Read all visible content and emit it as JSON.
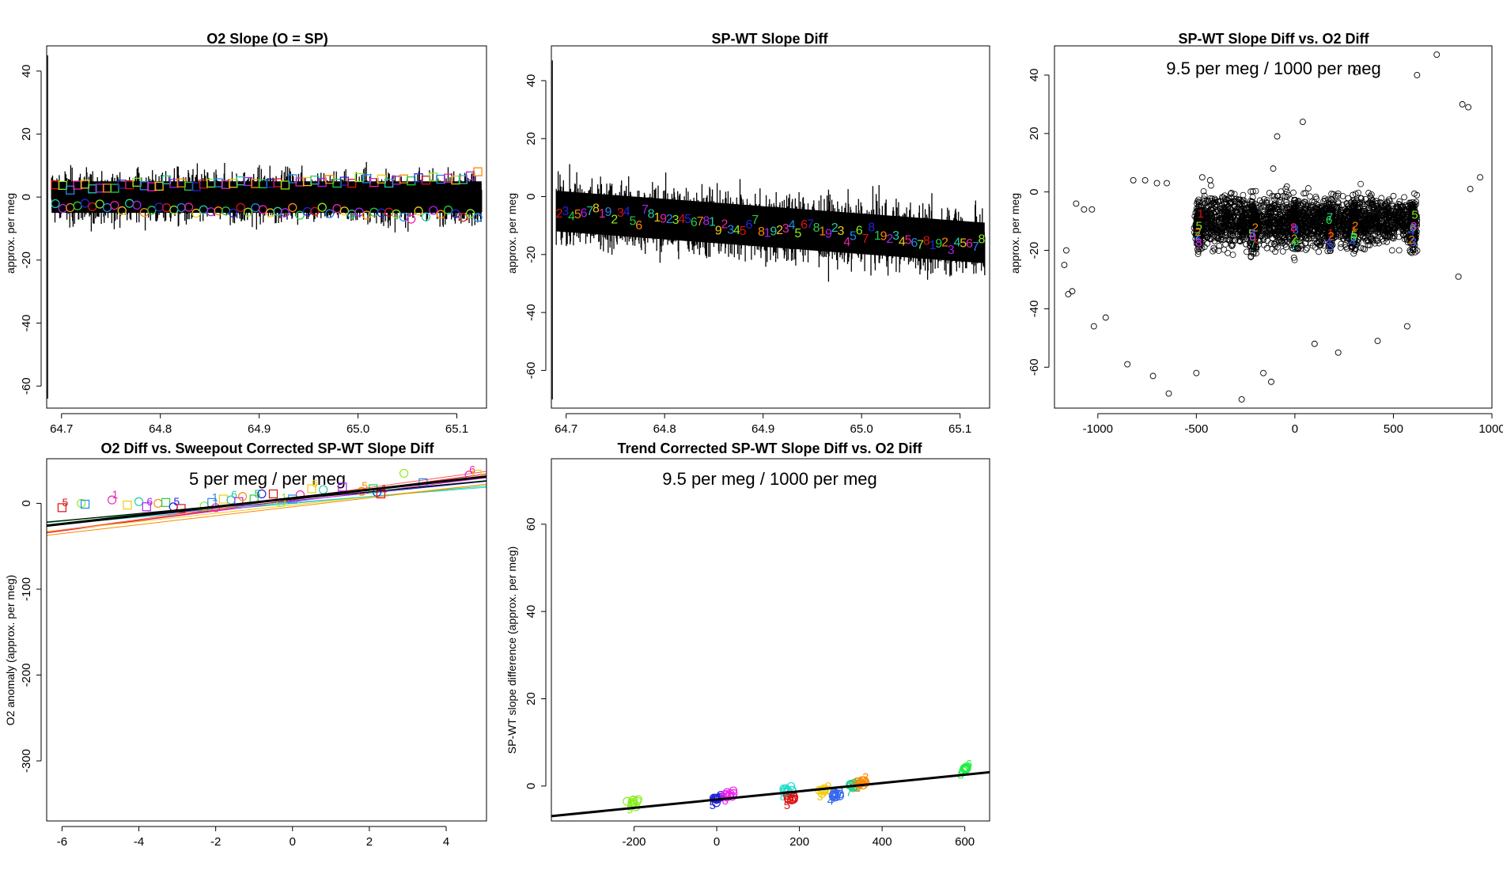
{
  "chart_data": [
    {
      "id": "p1",
      "type": "line",
      "title": "O2 Slope (O = SP)",
      "xlabel": "",
      "ylabel": "approx. per meg",
      "xlim": [
        64.685,
        65.13
      ],
      "ylim": [
        -67,
        48
      ],
      "xticks": [
        "64.7",
        "64.8",
        "64.9",
        "65.0",
        "65.1"
      ],
      "yticks": [
        "-60",
        "-40",
        "-20",
        "0",
        "20",
        "40"
      ],
      "xtick_values": [
        64.7,
        64.8,
        64.9,
        65.0,
        65.1
      ],
      "ytick_values": [
        -60,
        -40,
        -20,
        0,
        20,
        40
      ],
      "noise": {
        "x0": 64.69,
        "x1": 65.125,
        "center_start": 0,
        "center_end": 0,
        "spread": 5,
        "spike_y": [
          45,
          -64
        ]
      },
      "series": [
        {
          "name": "squares",
          "marker": "square",
          "y_start": 3,
          "y_end": 6
        },
        {
          "name": "circles",
          "marker": "circle",
          "y_start": -3,
          "y_end": -6
        }
      ]
    },
    {
      "id": "p2",
      "type": "line",
      "title": "SP-WT Slope Diff",
      "xlabel": "",
      "ylabel": "approx. per meg",
      "xlim": [
        64.685,
        65.13
      ],
      "ylim": [
        -73,
        52
      ],
      "xticks": [
        "64.7",
        "64.8",
        "64.9",
        "65.0",
        "65.1"
      ],
      "yticks": [
        "-60",
        "-40",
        "-20",
        "0",
        "20",
        "40"
      ],
      "xtick_values": [
        64.7,
        64.8,
        64.9,
        65.0,
        65.1
      ],
      "ytick_values": [
        -60,
        -40,
        -20,
        0,
        20,
        40
      ],
      "noise": {
        "x0": 64.69,
        "x1": 65.125,
        "center_start": -5,
        "center_end": -16,
        "spread": 7,
        "spike_y": [
          47,
          -70
        ]
      },
      "digit_labels": [
        "2",
        "3",
        "4",
        "5",
        "6",
        "7",
        "8",
        "1",
        "9"
      ]
    },
    {
      "id": "p3",
      "type": "scatter",
      "title": "SP-WT Slope Diff vs. O2 Diff",
      "xlabel": "",
      "ylabel": "approx. per meg",
      "annotation": "9.5 per meg / 1000 per meg",
      "xlim": [
        -1220,
        1000
      ],
      "ylim": [
        -74,
        50
      ],
      "xticks": [
        "-1000",
        "-500",
        "0",
        "500",
        "1000"
      ],
      "yticks": [
        "-60",
        "-40",
        "-20",
        "0",
        "20",
        "40"
      ],
      "xtick_values": [
        -1000,
        -500,
        0,
        500,
        1000
      ],
      "ytick_values": [
        -60,
        -40,
        -20,
        0,
        20,
        40
      ],
      "clusters": [
        -490,
        -210,
        0,
        180,
        300,
        600
      ],
      "outliers": [
        [
          -1170,
          -25
        ],
        [
          -1160,
          -20
        ],
        [
          -1150,
          -35
        ],
        [
          -1130,
          -34
        ],
        [
          -1110,
          -4
        ],
        [
          -1070,
          -6
        ],
        [
          -1030,
          -6
        ],
        [
          -1020,
          -46
        ],
        [
          -960,
          -43
        ],
        [
          -850,
          -59
        ],
        [
          -820,
          4
        ],
        [
          -760,
          4
        ],
        [
          -720,
          -63
        ],
        [
          -700,
          3
        ],
        [
          -650,
          3
        ],
        [
          -640,
          -69
        ],
        [
          -500,
          -62
        ],
        [
          -470,
          5
        ],
        [
          -430,
          4
        ],
        [
          -270,
          -71
        ],
        [
          -160,
          -62
        ],
        [
          -120,
          -65
        ],
        [
          -90,
          19
        ],
        [
          -110,
          8
        ],
        [
          100,
          -52
        ],
        [
          40,
          24
        ],
        [
          220,
          -55
        ],
        [
          310,
          41
        ],
        [
          420,
          -51
        ],
        [
          570,
          -46
        ],
        [
          620,
          40
        ],
        [
          720,
          47
        ],
        [
          830,
          -29
        ],
        [
          850,
          30
        ],
        [
          880,
          29
        ],
        [
          890,
          1
        ],
        [
          940,
          5
        ]
      ],
      "digit_labels": [
        "4",
        "5",
        "8",
        "7",
        "1",
        "2",
        "3",
        "6"
      ]
    },
    {
      "id": "p4",
      "type": "scatter",
      "title": "O2 Diff vs. Sweepout Corrected SP-WT Slope Diff",
      "xlabel": "",
      "ylabel": "O2 anomaly (approx. per meg)",
      "annotation": "5 per meg / per meg",
      "xlim": [
        -6.4,
        5.05
      ],
      "ylim": [
        -370,
        52
      ],
      "xticks": [
        "-6",
        "-4",
        "-2",
        "0",
        "2",
        "4"
      ],
      "yticks": [
        "-300",
        "-200",
        "-100",
        "0"
      ],
      "xtick_values": [
        -6,
        -4,
        -2,
        0,
        2,
        4
      ],
      "ytick_values": [
        -300,
        -200,
        -100,
        0
      ],
      "fit_line": {
        "slope": 5,
        "intercept": 6
      },
      "points": [
        [
          -6,
          -5
        ],
        [
          -5.5,
          0
        ],
        [
          -5.4,
          -1
        ],
        [
          -4.7,
          4
        ],
        [
          -4.3,
          -2
        ],
        [
          -4.0,
          2
        ],
        [
          -3.8,
          -4
        ],
        [
          -3.5,
          0
        ],
        [
          -3.3,
          1
        ],
        [
          -3.1,
          -4
        ],
        [
          -2.9,
          -6
        ],
        [
          -2.3,
          -3
        ],
        [
          -2.1,
          1
        ],
        [
          -2.0,
          -5
        ],
        [
          -1.8,
          5
        ],
        [
          -1.6,
          4
        ],
        [
          -1.4,
          2
        ],
        [
          -1.3,
          8
        ],
        [
          -1.0,
          5
        ],
        [
          -0.8,
          11
        ],
        [
          -0.5,
          11
        ],
        [
          -0.3,
          1
        ],
        [
          0,
          5
        ],
        [
          0.2,
          10
        ],
        [
          0.5,
          17
        ],
        [
          0.8,
          16
        ],
        [
          1.3,
          19
        ],
        [
          1.8,
          14
        ],
        [
          2.1,
          17
        ],
        [
          2.2,
          13
        ],
        [
          2.3,
          11
        ],
        [
          2.9,
          35
        ],
        [
          3.4,
          24
        ],
        [
          4.6,
          33
        ],
        [
          4.8,
          34
        ]
      ],
      "digit_labels": [
        "5",
        "4",
        "2",
        "1",
        "7",
        "3",
        "6",
        "8",
        "9"
      ]
    },
    {
      "id": "p5",
      "type": "scatter",
      "title": "Trend Corrected SP-WT Slope Diff vs. O2 Diff",
      "xlabel": "",
      "ylabel": "SP-WT slope difference (approx. per meg)",
      "annotation": "9.5 per meg / 1000 per meg",
      "xlim": [
        -400,
        660
      ],
      "ylim": [
        -8,
        75
      ],
      "xticks": [
        "-200",
        "0",
        "200",
        "400",
        "600"
      ],
      "yticks": [
        "0",
        "20",
        "40",
        "60"
      ],
      "xtick_values": [
        -200,
        0,
        200,
        400,
        600
      ],
      "ytick_values": [
        0,
        20,
        40,
        60
      ],
      "fit_line": {
        "slope": 0.0095,
        "intercept": -3.1
      },
      "clusters": [
        {
          "x": -200,
          "y": -4,
          "color": "#88ee22",
          "labels": [
            "9",
            "C",
            "O"
          ]
        },
        {
          "x": 0,
          "y": -3,
          "color": "#2222dd",
          "labels": [
            "5",
            "9",
            "O"
          ]
        },
        {
          "x": 30,
          "y": -2,
          "color": "#ee22ee",
          "labels": [
            "6",
            "7",
            "O"
          ]
        },
        {
          "x": 170,
          "y": -1,
          "color": "#22ddcc",
          "labels": [
            "8",
            "9",
            "O"
          ]
        },
        {
          "x": 180,
          "y": -3,
          "color": "#dd1111",
          "labels": [
            "5",
            "2",
            "4"
          ]
        },
        {
          "x": 260,
          "y": -1,
          "color": "#eecc11",
          "labels": [
            "3",
            "O",
            "9"
          ]
        },
        {
          "x": 285,
          "y": -2,
          "color": "#3366ee",
          "labels": [
            "4",
            "7",
            "O"
          ]
        },
        {
          "x": 330,
          "y": 0,
          "color": "#22cc88",
          "labels": [
            "7",
            "O",
            "6"
          ]
        },
        {
          "x": 350,
          "y": 1,
          "color": "#ff8800",
          "labels": [
            "1",
            "O",
            "2"
          ]
        },
        {
          "x": 600,
          "y": 4,
          "color": "#22ee44",
          "labels": [
            "8",
            "O",
            "6"
          ]
        }
      ]
    }
  ]
}
